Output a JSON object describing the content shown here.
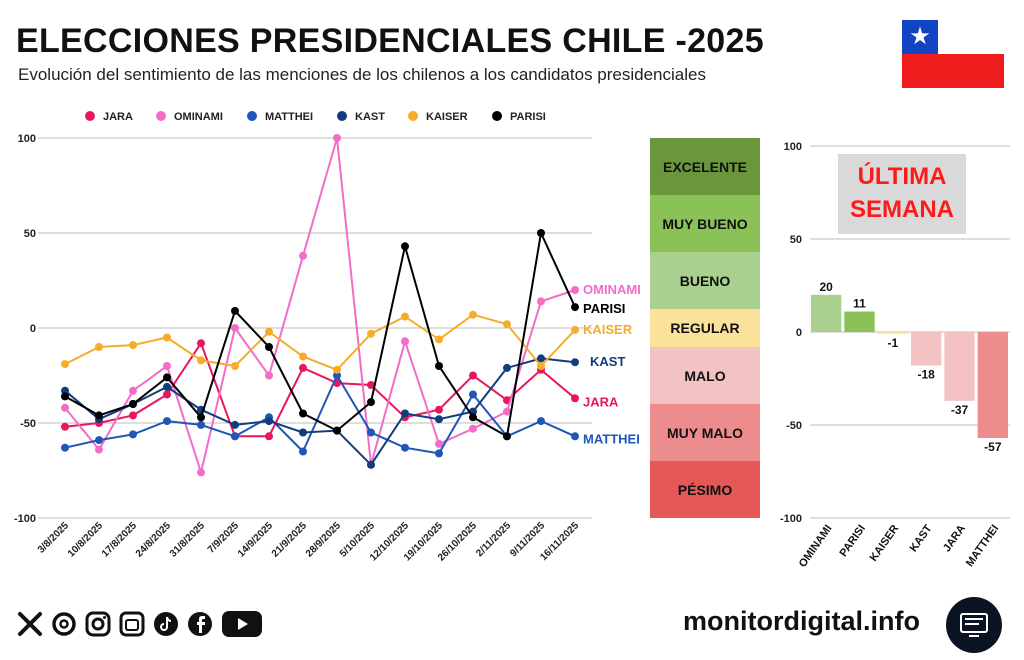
{
  "header": {
    "title": "ELECCIONES PRESIDENCIALES CHILE -2025",
    "subtitle": "Evolución del sentimiento de las menciones de los chilenos a los candidatos presidenciales"
  },
  "footer": {
    "website": "monitordigital.info",
    "social_icons": [
      "x-icon",
      "threads-icon",
      "instagram-icon",
      "clapper-icon",
      "tiktok-icon",
      "facebook-icon",
      "youtube-icon"
    ]
  },
  "sentiment_scale": {
    "labels": [
      "EXCELENTE",
      "MUY BUENO",
      "BUENO",
      "REGULAR",
      "MALO",
      "MUY MALO",
      "PÉSIMO"
    ],
    "colors": [
      "#6a963c",
      "#8bc257",
      "#a9d08e",
      "#fbe29b",
      "#f3c2c3",
      "#ec8c8d",
      "#e45858"
    ]
  },
  "last_week_label": {
    "line1": "ÚLTIMA",
    "line2": "SEMANA"
  },
  "chart_data": [
    {
      "type": "line",
      "title": "Evolución del sentimiento",
      "xlabel": "",
      "ylabel": "",
      "ylim": [
        -100,
        100
      ],
      "yticks": [
        100,
        50,
        0,
        -50,
        -100
      ],
      "legend_position": "top",
      "categories": [
        "3/8/2025",
        "10/8/2025",
        "17/8/2025",
        "24/8/2025",
        "31/8/2025",
        "7/9/2025",
        "14/9/2025",
        "21/9/2025",
        "28/9/2025",
        "5/10/2025",
        "12/10/2025",
        "19/10/2025",
        "26/10/2025",
        "2/11/2025",
        "9/11/2025",
        "16/11/2025"
      ],
      "series": [
        {
          "name": "JARA",
          "color": "#e8175d",
          "end_label": "JARA",
          "values": [
            -52,
            -50,
            -46,
            -35,
            -8,
            -57,
            -57,
            -21,
            -29,
            -30,
            -47,
            -43,
            -25,
            -38,
            -22,
            -37
          ]
        },
        {
          "name": "OMINAMI",
          "color": "#f36cc8",
          "end_label": "OMINAMI",
          "values": [
            -42,
            -64,
            -33,
            -20,
            -76,
            0,
            -25,
            38,
            100,
            -72,
            -7,
            -61,
            -53,
            -44,
            14,
            20
          ]
        },
        {
          "name": "MATTHEI",
          "color": "#1f56b8",
          "end_label": "MATTHEI",
          "values": [
            -63,
            -59,
            -56,
            -49,
            -51,
            -57,
            -47,
            -65,
            -25,
            -55,
            -63,
            -66,
            -35,
            -57,
            -49,
            -57
          ]
        },
        {
          "name": "KAST",
          "color": "#113d7a",
          "end_label": "KAST",
          "values": [
            -33,
            -48,
            -40,
            -31,
            -43,
            -51,
            -49,
            -55,
            -54,
            -72,
            -45,
            -48,
            -44,
            -21,
            -16,
            -18
          ]
        },
        {
          "name": "KAISER",
          "color": "#f5ac2a",
          "end_label": "KAISER",
          "values": [
            -19,
            -10,
            -9,
            -5,
            -17,
            -20,
            -2,
            -15,
            -22,
            -3,
            6,
            -6,
            7,
            2,
            -20,
            -1
          ]
        },
        {
          "name": "PARISI",
          "color": "#000000",
          "end_label": "PARISI",
          "values": [
            -36,
            -46,
            -40,
            -26,
            -47,
            9,
            -10,
            -45,
            -54,
            -39,
            43,
            -20,
            -47,
            -57,
            50,
            11
          ]
        }
      ]
    },
    {
      "type": "bar",
      "title": "ÚLTIMA SEMANA",
      "xlabel": "",
      "ylabel": "",
      "ylim": [
        -100,
        100
      ],
      "yticks": [
        100,
        50,
        0,
        -50,
        -100
      ],
      "categories": [
        "OMINAMI",
        "PARISI",
        "KAISER",
        "KAST",
        "JARA",
        "MATTHEI"
      ],
      "values": [
        20,
        11,
        -1,
        -18,
        -37,
        -57
      ],
      "value_labels": [
        "20",
        "11",
        "-1",
        "-18",
        "-37",
        "-57"
      ],
      "colors": [
        "#a9d08e",
        "#8bc257",
        "#fbe29b",
        "#f3c2c3",
        "#f3c2c3",
        "#ec8c8d"
      ]
    }
  ]
}
